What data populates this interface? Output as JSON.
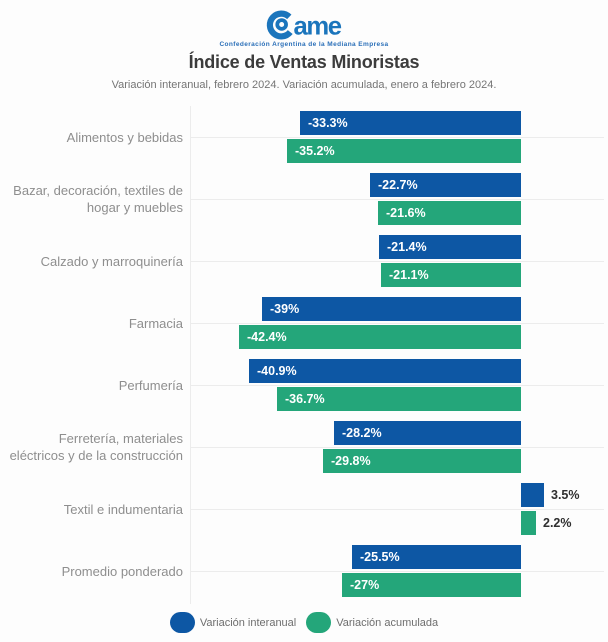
{
  "colors": {
    "interanual_blue": "#0d57a4",
    "acumulada_green": "#24a67a",
    "logo_blue": "#1b75bc",
    "title_text": "#3c3c3c",
    "subtitle_text": "#757575",
    "category_text": "#8e8e8e",
    "positive_value_text": "#2f2f2f",
    "grid_line": "#ececec",
    "background": "#fdfdfd"
  },
  "logo": {
    "wordmark": "ame",
    "tagline": "Confederación Argentina de la Mediana Empresa"
  },
  "header": {
    "title": "Índice de Ventas Minoristas",
    "subtitle": "Variación interanual, febrero 2024. Variación acumulada, enero a febrero 2024."
  },
  "chart_data": {
    "type": "bar",
    "orientation": "horizontal",
    "title": "Índice de Ventas Minoristas",
    "subtitle": "Variación interanual, febrero 2024. Variación acumulada, enero a febrero 2024.",
    "unit": "%",
    "categories": [
      "Alimentos y bebidas",
      "Bazar, decoración, textiles de\nhogar y muebles",
      "Calzado y marroquinería",
      "Farmacia",
      "Perfumería",
      "Ferretería, materiales\neléctricos y de la construcción",
      "Textil e indumentaria",
      "Promedio ponderado"
    ],
    "series": [
      {
        "name": "Variación interanual",
        "color": "#0d57a4",
        "values": [
          -33.3,
          -22.7,
          -21.4,
          -39,
          -40.9,
          -28.2,
          3.5,
          -25.5
        ],
        "value_labels": [
          "-33.3%",
          "-22.7%",
          "-21.4%",
          "-39%",
          "-40.9%",
          "-28.2%",
          "3.5%",
          "-25.5%"
        ]
      },
      {
        "name": "Variación acumulada",
        "color": "#24a67a",
        "values": [
          -35.2,
          -21.6,
          -21.1,
          -42.4,
          -36.7,
          -29.8,
          2.2,
          -27
        ],
        "value_labels": [
          "-35.2%",
          "-21.6%",
          "-21.1%",
          "-42.4%",
          "-36.7%",
          "-29.8%",
          "2.2%",
          "-27%"
        ]
      }
    ],
    "xlim": [
      -50,
      13
    ],
    "grid": true,
    "legend_position": "bottom"
  },
  "legend": {
    "items": [
      {
        "label": "Variación interanual",
        "color": "#0d57a4"
      },
      {
        "label": "Variación acumulada",
        "color": "#24a67a"
      }
    ]
  }
}
